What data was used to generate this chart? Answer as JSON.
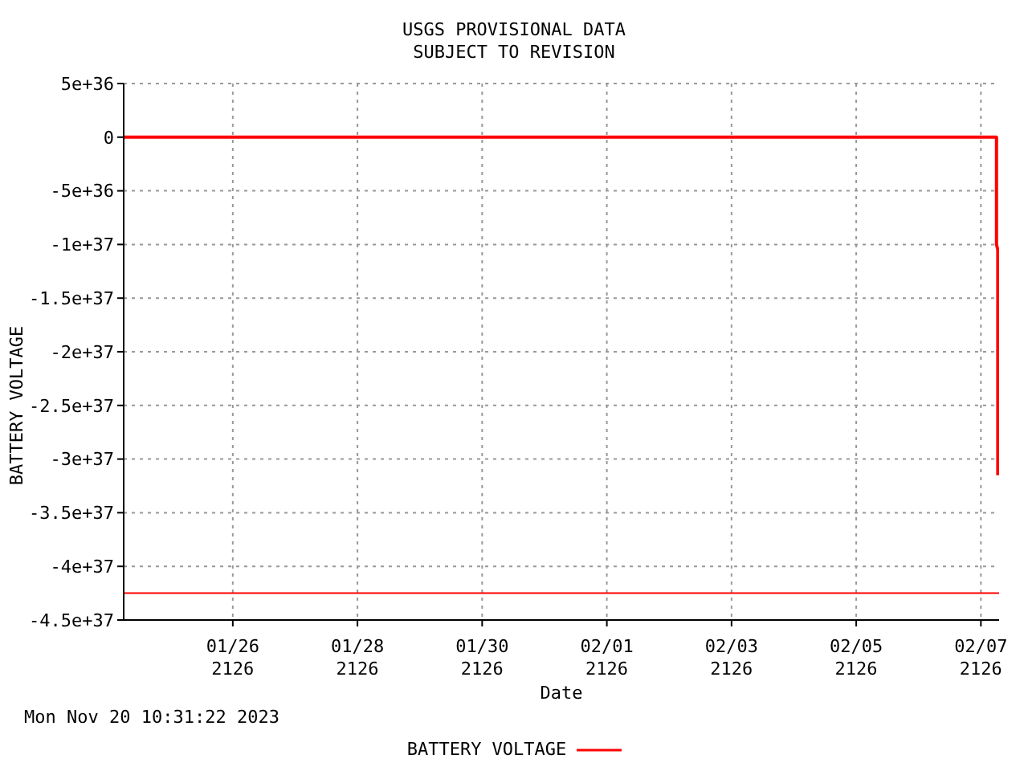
{
  "chart_data": {
    "type": "line",
    "title": "USGS PROVISIONAL DATA",
    "subtitle": "SUBJECT TO REVISION",
    "xlabel": "Date",
    "ylabel": "BATTERY VOLTAGE",
    "annotations": [
      "Mon Nov 20 10:31:22 2023"
    ],
    "x": [
      "2126-01-24T06:00",
      "2126-01-31T05:00",
      "2126-02-07T06:00",
      "2126-02-07T06:00",
      "2126-02-07T06:30",
      "2126-02-07T06:30"
    ],
    "series": [
      {
        "name": "BATTERY VOLTAGE",
        "color": "#ff0000",
        "values": [
          0,
          0,
          0,
          -1e+37,
          -1.05e+37,
          -3.15e+37
        ]
      }
    ],
    "ref_lines": [
      {
        "axis": "y",
        "value": -4.25e+37,
        "color": "#ff0000"
      }
    ],
    "xlim": [
      "2126-01-24T06:00",
      "2126-02-07T07:00"
    ],
    "xticks": [
      {
        "value": "2126-01-26",
        "label": "01/26\n2126"
      },
      {
        "value": "2126-01-28",
        "label": "01/28\n2126"
      },
      {
        "value": "2126-01-30",
        "label": "01/30\n2126"
      },
      {
        "value": "2126-02-01",
        "label": "02/01\n2126"
      },
      {
        "value": "2126-02-03",
        "label": "02/03\n2126"
      },
      {
        "value": "2126-02-05",
        "label": "02/05\n2126"
      },
      {
        "value": "2126-02-07",
        "label": "02/07\n2126"
      }
    ],
    "ylim": [
      -4.5e+37,
      5e+36
    ],
    "yticks": [
      {
        "value": 5e+36,
        "label": "5e+36"
      },
      {
        "value": 0,
        "label": "0"
      },
      {
        "value": -5e+36,
        "label": "-5e+36"
      },
      {
        "value": -1e+37,
        "label": "-1e+37"
      },
      {
        "value": -1.5e+37,
        "label": "-1.5e+37"
      },
      {
        "value": -2e+37,
        "label": "-2e+37"
      },
      {
        "value": -2.5e+37,
        "label": "-2.5e+37"
      },
      {
        "value": -3e+37,
        "label": "-3e+37"
      },
      {
        "value": -3.5e+37,
        "label": "-3.5e+37"
      },
      {
        "value": -4e+37,
        "label": "-4e+37"
      },
      {
        "value": -4.5e+37,
        "label": "-4.5e+37"
      }
    ],
    "grid": true,
    "legend": "bottom",
    "line_style": "solid",
    "marker": "none"
  }
}
